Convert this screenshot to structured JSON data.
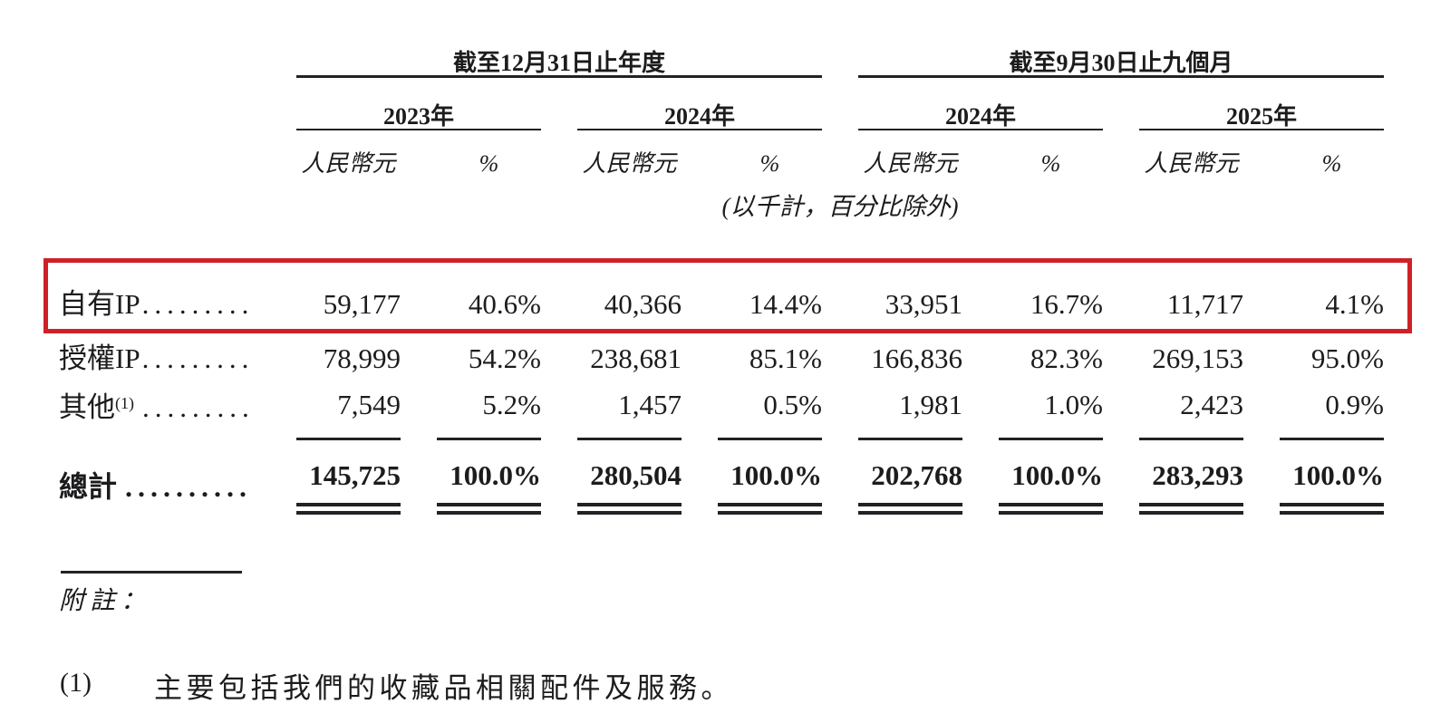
{
  "table": {
    "period_groups": [
      {
        "title": "截至12月31日止年度",
        "years": [
          {
            "label": "2023年"
          },
          {
            "label": "2024年"
          }
        ]
      },
      {
        "title": "截至9月30日止九個月",
        "years": [
          {
            "label": "2024年"
          },
          {
            "label": "2025年"
          }
        ]
      }
    ],
    "unit_headers": {
      "currency": "人民幣元",
      "percent": "%"
    },
    "units_note": "(以千計，百分比除外)",
    "rows": [
      {
        "label": "自有IP",
        "sup": "",
        "leader": ".........",
        "values": [
          "59,177",
          "40.6%",
          "40,366",
          "14.4%",
          "33,951",
          "16.7%",
          "11,717",
          "4.1%"
        ],
        "highlighted": true
      },
      {
        "label": "授權IP",
        "sup": "",
        "leader": ".........",
        "values": [
          "78,999",
          "54.2%",
          "238,681",
          "85.1%",
          "166,836",
          "82.3%",
          "269,153",
          "95.0%"
        ],
        "highlighted": false
      },
      {
        "label": "其他",
        "sup": "(1)",
        "leader": ".........",
        "values": [
          "7,549",
          "5.2%",
          "1,457",
          "0.5%",
          "1,981",
          "1.0%",
          "2,423",
          "0.9%"
        ],
        "highlighted": false
      }
    ],
    "total_row": {
      "label": "總計",
      "leader": "..........",
      "values": [
        "145,725",
        "100.0%",
        "280,504",
        "100.0%",
        "202,768",
        "100.0%",
        "283,293",
        "100.0%"
      ]
    }
  },
  "footnotes": {
    "heading": "附註：",
    "items": [
      {
        "marker": "(1)",
        "text": "主要包括我們的收藏品相關配件及服務。"
      }
    ]
  },
  "annotation": {
    "highlight_color": "#ce2127"
  }
}
